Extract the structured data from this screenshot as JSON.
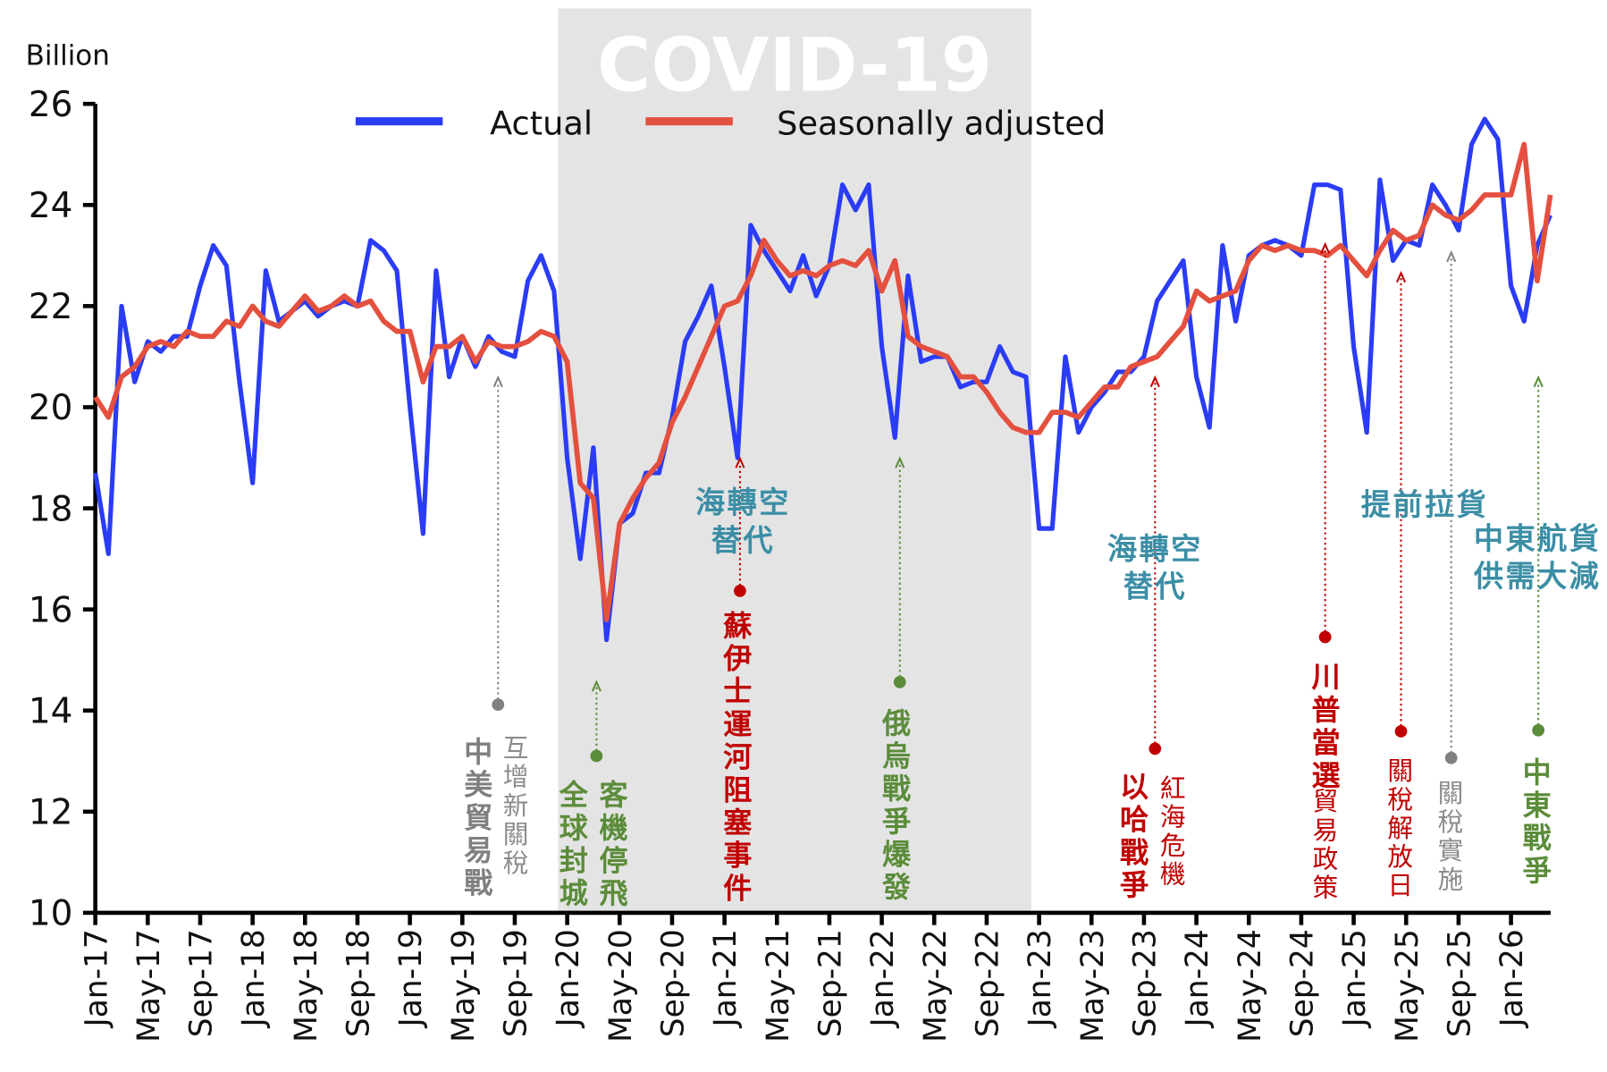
{
  "chart_data": {
    "type": "line",
    "y_label": "Billion",
    "shade_label": "COVID-19",
    "categories": [
      "Jan-17",
      null,
      null,
      null,
      "May-17",
      null,
      null,
      null,
      "Sep-17",
      null,
      null,
      null,
      "Jan-18",
      null,
      null,
      null,
      "May-18",
      null,
      null,
      null,
      "Sep-18",
      null,
      null,
      null,
      "Jan-19",
      null,
      null,
      null,
      "May-19",
      null,
      null,
      null,
      "Sep-19",
      null,
      null,
      null,
      "Jan-20",
      null,
      null,
      null,
      "May-20",
      null,
      null,
      null,
      "Sep-20",
      null,
      null,
      null,
      "Jan-21",
      null,
      null,
      null,
      "May-21",
      null,
      null,
      null,
      "Sep-21",
      null,
      null,
      null,
      "Jan-22",
      null,
      null,
      null,
      "May-22",
      null,
      null,
      null,
      "Sep-22",
      null,
      null,
      null,
      "Jan-23",
      null,
      null,
      null,
      "May-23",
      null,
      null,
      null,
      "Sep-23",
      null,
      null,
      null,
      "Jan-24",
      null,
      null,
      null,
      "May-24",
      null,
      null,
      null,
      "Sep-24",
      null,
      null,
      null,
      "Jan-25",
      null,
      null,
      null,
      "May-25",
      null,
      null,
      null,
      "Sep-25",
      null,
      null,
      null,
      "Jan-26",
      null,
      null,
      null
    ],
    "series": [
      {
        "name": "Actual",
        "color": "#2a3cf5",
        "values": [
          18.7,
          17.1,
          22.0,
          20.5,
          21.3,
          21.1,
          21.4,
          21.4,
          22.4,
          23.2,
          22.8,
          20.5,
          18.5,
          22.7,
          21.7,
          21.9,
          22.1,
          21.8,
          22.0,
          22.1,
          22.0,
          23.3,
          23.1,
          22.7,
          20.0,
          17.5,
          22.7,
          20.6,
          21.4,
          20.8,
          21.4,
          21.1,
          21.0,
          22.5,
          23.0,
          22.3,
          19.0,
          17.0,
          19.2,
          15.4,
          17.7,
          17.9,
          18.7,
          18.7,
          19.8,
          21.3,
          21.8,
          22.4,
          20.8,
          19.0,
          23.6,
          23.1,
          22.7,
          22.3,
          23.0,
          22.2,
          22.8,
          24.4,
          23.9,
          24.4,
          21.2,
          19.4,
          22.6,
          20.9,
          21.0,
          21.0,
          20.4,
          20.5,
          20.5,
          21.2,
          20.7,
          20.6,
          17.6,
          17.6,
          21.0,
          19.5,
          20.0,
          20.3,
          20.7,
          20.7,
          21.0,
          22.1,
          22.5,
          22.9,
          20.6,
          19.6,
          23.2,
          21.7,
          23.0,
          23.2,
          23.3,
          23.2,
          23.0,
          24.4,
          24.4,
          24.3,
          21.2,
          19.5,
          24.5,
          22.9,
          23.3,
          23.2,
          24.4,
          24.0,
          23.5,
          25.2,
          25.7,
          25.3,
          22.4,
          21.7,
          23.2,
          23.8
        ]
      },
      {
        "name": "Seasonally adjusted",
        "color": "#e4503f",
        "values": [
          20.2,
          19.8,
          20.6,
          20.8,
          21.2,
          21.3,
          21.2,
          21.5,
          21.4,
          21.4,
          21.7,
          21.6,
          22.0,
          21.7,
          21.6,
          21.9,
          22.2,
          21.9,
          22.0,
          22.2,
          22.0,
          22.1,
          21.7,
          21.5,
          21.5,
          20.5,
          21.2,
          21.2,
          21.4,
          20.9,
          21.3,
          21.2,
          21.2,
          21.3,
          21.5,
          21.4,
          20.9,
          18.5,
          18.2,
          15.8,
          17.7,
          18.2,
          18.6,
          18.9,
          19.7,
          20.2,
          20.8,
          21.4,
          22.0,
          22.1,
          22.6,
          23.3,
          22.9,
          22.6,
          22.7,
          22.6,
          22.8,
          22.9,
          22.8,
          23.1,
          22.3,
          22.9,
          21.4,
          21.2,
          21.1,
          21.0,
          20.6,
          20.6,
          20.3,
          19.9,
          19.6,
          19.5,
          19.5,
          19.9,
          19.9,
          19.8,
          20.1,
          20.4,
          20.4,
          20.8,
          20.9,
          21.0,
          21.3,
          21.6,
          22.3,
          22.1,
          22.2,
          22.3,
          22.9,
          23.2,
          23.1,
          23.2,
          23.1,
          23.1,
          23.0,
          23.2,
          22.9,
          22.6,
          23.1,
          23.5,
          23.3,
          23.4,
          24.0,
          23.8,
          23.7,
          23.9,
          24.2,
          24.2,
          24.2,
          25.2,
          22.5,
          24.2
        ]
      }
    ],
    "ylim": [
      10,
      26
    ],
    "yticks": [
      10,
      12,
      14,
      16,
      18,
      20,
      22,
      24,
      26
    ],
    "annotations": [
      {
        "text": "中美貿易戰",
        "color": "#7f7f7f"
      },
      {
        "text": "互增新關稅",
        "color": "#8c8c8c"
      },
      {
        "text": "全球封城",
        "color": "#5b8c3a"
      },
      {
        "text": "客機停飛",
        "color": "#5b8c3a"
      },
      {
        "lines": [
          "海轉空",
          "替代"
        ],
        "color": "#3b8ea5"
      },
      {
        "text": "蘇伊士運河阻塞事件",
        "color": "#c00000"
      },
      {
        "text": "俄烏戰爭爆發",
        "color": "#5b8c3a"
      },
      {
        "lines": [
          "海轉空",
          "替代"
        ],
        "color": "#3b8ea5"
      },
      {
        "text": "以哈戰爭",
        "color": "#c00000"
      },
      {
        "text": "紅海危機",
        "color": "#c00000"
      },
      {
        "text": "川普當選",
        "color": "#c00000"
      },
      {
        "text": "貿易政策",
        "color": "#c00000"
      },
      {
        "text": "提前拉貨",
        "color": "#3b8ea5"
      },
      {
        "text": "關稅解放日",
        "color": "#c00000"
      },
      {
        "text": "關稅實施",
        "color": "#8c8c8c"
      },
      {
        "lines": [
          "中東航貨",
          "供需大減"
        ],
        "color": "#3b8ea5"
      },
      {
        "text": "中東戰爭",
        "color": "#5b8c3a"
      }
    ]
  }
}
